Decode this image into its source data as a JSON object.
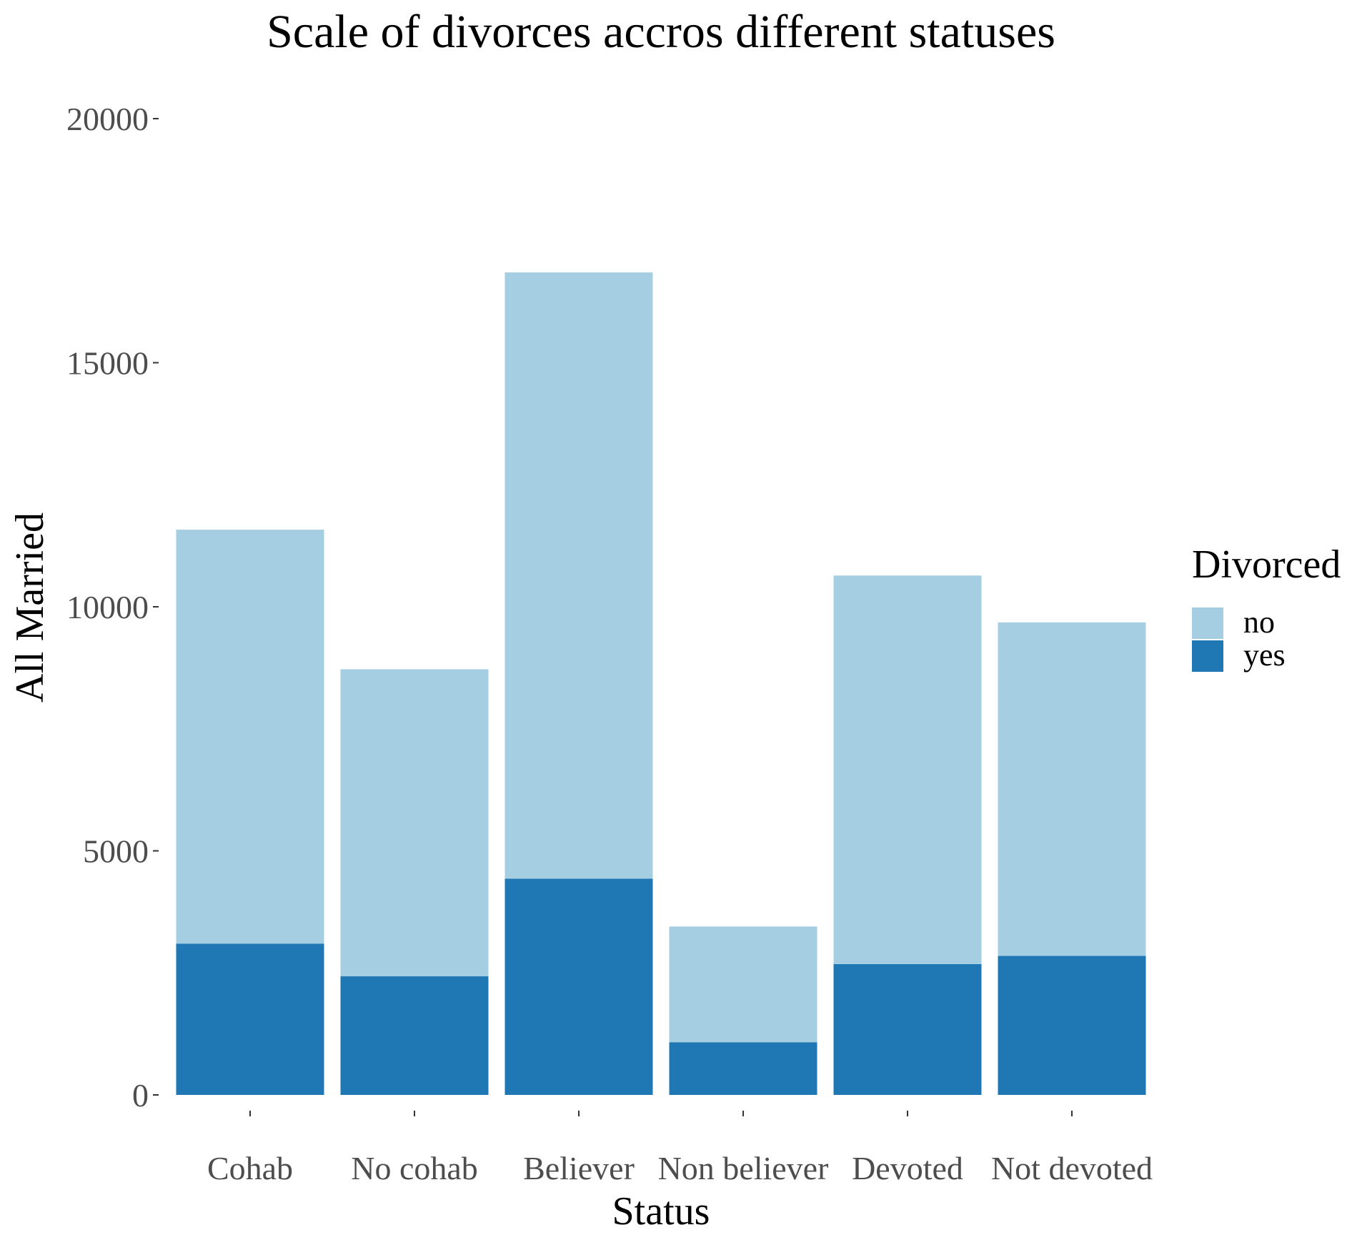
{
  "chart_data": {
    "type": "bar",
    "stacked": true,
    "title": "Scale of divorces accros different statuses",
    "xlabel": "Status",
    "ylabel": "All Married",
    "categories": [
      "Cohab",
      "No cohab",
      "Believer",
      "Non believer",
      "Devoted",
      "Not devoted"
    ],
    "series": [
      {
        "name": "yes",
        "color": "#1f78b4",
        "values": [
          3100,
          2430,
          4430,
          1080,
          2680,
          2850
        ]
      },
      {
        "name": "no",
        "color": "#a6cee3",
        "values": [
          8480,
          6290,
          12420,
          2370,
          7960,
          6830
        ]
      }
    ],
    "totals": [
      11580,
      8720,
      16850,
      3450,
      10640,
      9680
    ],
    "ylim": [
      0,
      20000
    ],
    "yticks": [
      0,
      5000,
      10000,
      15000,
      20000
    ],
    "grid": false,
    "legend": {
      "title": "Divorced",
      "position": "right",
      "items": [
        {
          "label": "no",
          "color": "#a6cee3"
        },
        {
          "label": "yes",
          "color": "#1f78b4"
        }
      ]
    }
  }
}
